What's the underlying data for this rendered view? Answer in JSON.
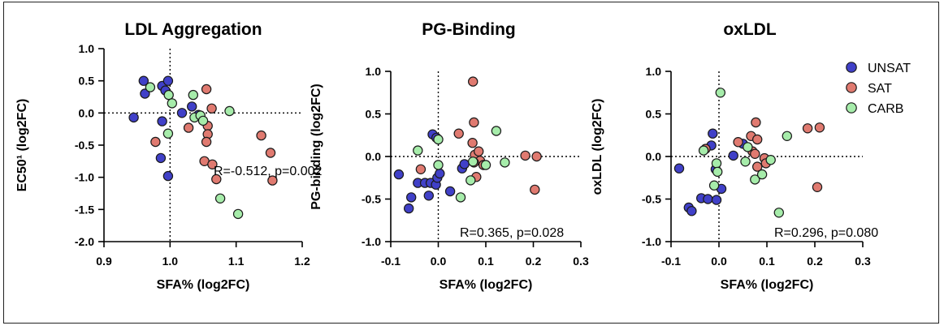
{
  "chart_data": [
    {
      "type": "scatter",
      "title": "LDL Aggregation",
      "xlabel": "SFA% (log2FC)",
      "ylabel": "EC50¹ (log2FC)",
      "xlim": [
        0.9,
        1.2
      ],
      "ylim": [
        -2.0,
        1.0
      ],
      "xticks": [
        "0.9",
        "1.0",
        "1.1",
        "1.2"
      ],
      "yticks": [
        "1.0",
        "0.5",
        "0.0",
        "-0.5",
        "-1.0",
        "-1.5",
        "-2.0"
      ],
      "reference_lines": {
        "x": 1.0,
        "y": 0.0
      },
      "annotation": "R=-0.512, p=0.002",
      "series": [
        {
          "name": "UNSAT",
          "points": [
            [
              0.945,
              -0.07
            ],
            [
              0.96,
              0.5
            ],
            [
              0.962,
              0.3
            ],
            [
              0.988,
              0.42
            ],
            [
              0.997,
              0.5
            ],
            [
              0.993,
              0.35
            ],
            [
              0.988,
              -0.13
            ],
            [
              0.986,
              -0.7
            ],
            [
              0.997,
              -0.98
            ],
            [
              1.018,
              0.0
            ],
            [
              1.033,
              0.1
            ],
            [
              1.043,
              -0.03
            ]
          ]
        },
        {
          "name": "SAT",
          "points": [
            [
              0.978,
              -0.45
            ],
            [
              1.028,
              -0.23
            ],
            [
              1.055,
              0.37
            ],
            [
              1.057,
              -0.2
            ],
            [
              1.057,
              -0.33
            ],
            [
              1.055,
              -0.45
            ],
            [
              1.052,
              -0.75
            ],
            [
              1.063,
              0.07
            ],
            [
              1.064,
              -0.8
            ],
            [
              1.07,
              -1.03
            ],
            [
              1.138,
              -0.35
            ],
            [
              1.152,
              -0.62
            ],
            [
              1.155,
              -1.05
            ]
          ]
        },
        {
          "name": "CARB",
          "points": [
            [
              0.97,
              0.4
            ],
            [
              0.998,
              0.28
            ],
            [
              1.003,
              0.15
            ],
            [
              0.997,
              -0.32
            ],
            [
              1.035,
              0.28
            ],
            [
              1.037,
              -0.07
            ],
            [
              1.046,
              -0.04
            ],
            [
              1.05,
              -0.12
            ],
            [
              1.09,
              0.03
            ],
            [
              1.076,
              -1.33
            ],
            [
              1.103,
              -1.57
            ]
          ]
        }
      ]
    },
    {
      "type": "scatter",
      "title": "PG-Binding",
      "xlabel": "SFA% (log2FC)",
      "ylabel": "PG-binding (log2FC)",
      "xlim": [
        -0.1,
        0.3
      ],
      "ylim": [
        -1.0,
        1.0
      ],
      "xticks": [
        "-0.1",
        "0.0",
        "0.1",
        "0.2",
        "0.3"
      ],
      "yticks": [
        "1.0",
        "0.5",
        "0.0",
        "-0.5",
        "-1.0"
      ],
      "reference_lines": {
        "x": 0.0,
        "y": 0.0
      },
      "annotation": "R=0.365, p=0.028",
      "series": [
        {
          "name": "UNSAT",
          "points": [
            [
              -0.083,
              -0.21
            ],
            [
              -0.012,
              0.26
            ],
            [
              -0.004,
              0.22
            ],
            [
              -0.057,
              -0.48
            ],
            [
              -0.062,
              -0.61
            ],
            [
              -0.043,
              -0.31
            ],
            [
              -0.028,
              -0.31
            ],
            [
              -0.02,
              -0.46
            ],
            [
              -0.016,
              -0.31
            ],
            [
              -0.005,
              -0.33
            ],
            [
              -0.002,
              -0.25
            ],
            [
              0.003,
              -0.2
            ],
            [
              0.025,
              -0.41
            ],
            [
              0.05,
              -0.14
            ],
            [
              0.055,
              -0.09
            ]
          ]
        },
        {
          "name": "SAT",
          "points": [
            [
              -0.037,
              -0.15
            ],
            [
              0.043,
              0.27
            ],
            [
              0.073,
              0.88
            ],
            [
              0.075,
              0.4
            ],
            [
              0.072,
              0.16
            ],
            [
              0.077,
              0.02
            ],
            [
              0.085,
              0.06
            ],
            [
              0.088,
              -0.05
            ],
            [
              0.075,
              -0.07
            ],
            [
              0.08,
              -0.24
            ],
            [
              0.095,
              -0.1
            ],
            [
              0.183,
              0.01
            ],
            [
              0.203,
              -0.39
            ],
            [
              0.207,
              0.0
            ]
          ]
        },
        {
          "name": "CARB",
          "points": [
            [
              -0.043,
              0.07
            ],
            [
              0.0,
              0.2
            ],
            [
              0.0,
              -0.1
            ],
            [
              0.047,
              -0.48
            ],
            [
              0.068,
              -0.28
            ],
            [
              0.073,
              -0.06
            ],
            [
              0.1,
              -0.1
            ],
            [
              0.122,
              0.3
            ],
            [
              0.14,
              -0.07
            ]
          ]
        }
      ]
    },
    {
      "type": "scatter",
      "title": "oxLDL",
      "xlabel": "SFA% (log2FC)",
      "ylabel": "oxLDL (log2FC)",
      "xlim": [
        -0.1,
        0.3
      ],
      "ylim": [
        -1.0,
        1.0
      ],
      "xticks": [
        "-0.1",
        "0.0",
        "0.1",
        "0.2",
        "0.3"
      ],
      "yticks": [
        "1.0",
        "0.5",
        "0.0",
        "-0.5",
        "-1.0"
      ],
      "reference_lines": {
        "x": 0.0,
        "y": 0.0
      },
      "annotation": "R=0.296, p=0.080",
      "series": [
        {
          "name": "UNSAT",
          "points": [
            [
              -0.083,
              -0.14
            ],
            [
              -0.063,
              -0.6
            ],
            [
              -0.057,
              -0.64
            ],
            [
              -0.037,
              -0.49
            ],
            [
              -0.023,
              -0.5
            ],
            [
              -0.013,
              0.27
            ],
            [
              -0.016,
              0.13
            ],
            [
              -0.007,
              -0.15
            ],
            [
              -0.005,
              -0.51
            ],
            [
              0.005,
              -0.38
            ],
            [
              0.03,
              0.01
            ],
            [
              0.05,
              0.15
            ]
          ]
        },
        {
          "name": "SAT",
          "points": [
            [
              -0.028,
              0.09
            ],
            [
              0.04,
              0.17
            ],
            [
              0.067,
              0.24
            ],
            [
              0.077,
              0.4
            ],
            [
              0.08,
              0.2
            ],
            [
              0.07,
              0.06
            ],
            [
              0.075,
              0.03
            ],
            [
              0.08,
              -0.12
            ],
            [
              0.095,
              -0.02
            ],
            [
              0.098,
              -0.08
            ],
            [
              0.185,
              0.33
            ],
            [
              0.21,
              0.34
            ],
            [
              0.205,
              -0.36
            ]
          ]
        },
        {
          "name": "CARB",
          "points": [
            [
              0.003,
              0.75
            ],
            [
              -0.032,
              0.07
            ],
            [
              -0.005,
              -0.08
            ],
            [
              -0.003,
              -0.18
            ],
            [
              -0.01,
              -0.34
            ],
            [
              0.055,
              -0.06
            ],
            [
              0.06,
              0.11
            ],
            [
              0.075,
              -0.27
            ],
            [
              0.09,
              -0.21
            ],
            [
              0.108,
              -0.04
            ],
            [
              0.125,
              -0.66
            ],
            [
              0.142,
              0.24
            ]
          ]
        }
      ]
    }
  ],
  "legend": {
    "placement": "top-right",
    "items": [
      {
        "label": "UNSAT",
        "color": "#4040c8"
      },
      {
        "label": "SAT",
        "color": "#e07a70"
      },
      {
        "label": "CARB",
        "color": "#a6ecaa"
      }
    ]
  },
  "colors": {
    "UNSAT": "#4040c8",
    "SAT": "#e07a70",
    "CARB": "#a6ecaa",
    "outline": "#1a1a1a"
  }
}
